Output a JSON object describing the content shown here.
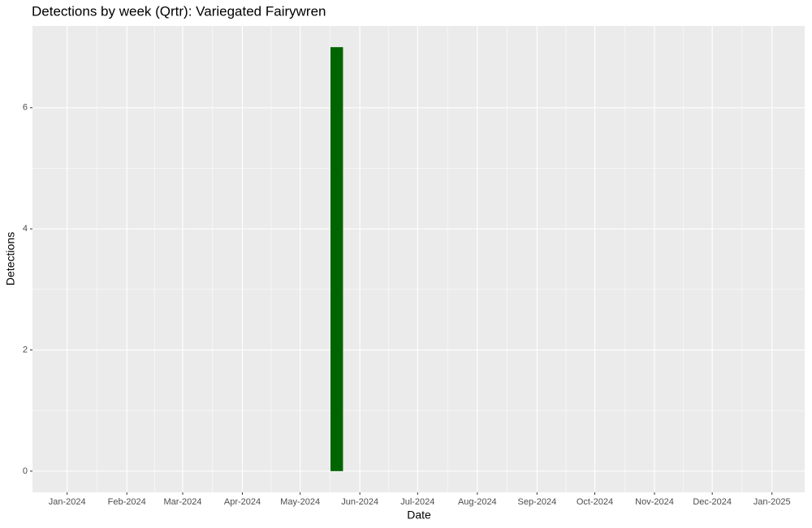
{
  "chart_data": {
    "type": "bar",
    "title": "Detections by week (Qrtr): Variegated Fairywren",
    "x_label": "Date",
    "y_label": "Detections",
    "x": [
      "2024-05-20"
    ],
    "values": [
      7
    ],
    "color": "#006400",
    "xlim": [
      "2023-12-14",
      "2025-01-18"
    ],
    "xticks": [
      {
        "value": "2024-01-01",
        "label": "Jan-2024"
      },
      {
        "value": "2024-02-01",
        "label": "Feb-2024"
      },
      {
        "value": "2024-03-01",
        "label": "Mar-2024"
      },
      {
        "value": "2024-04-01",
        "label": "Apr-2024"
      },
      {
        "value": "2024-05-01",
        "label": "May-2024"
      },
      {
        "value": "2024-06-01",
        "label": "Jun-2024"
      },
      {
        "value": "2024-07-01",
        "label": "Jul-2024"
      },
      {
        "value": "2024-08-01",
        "label": "Aug-2024"
      },
      {
        "value": "2024-09-01",
        "label": "Sep-2024"
      },
      {
        "value": "2024-10-01",
        "label": "Oct-2024"
      },
      {
        "value": "2024-11-01",
        "label": "Nov-2024"
      },
      {
        "value": "2024-12-01",
        "label": "Dec-2024"
      },
      {
        "value": "2025-01-01",
        "label": "Jan-2025"
      }
    ],
    "ylim": [
      -0.35,
      7.35
    ],
    "yticks": [
      0,
      2,
      4,
      6
    ],
    "grid": true
  }
}
